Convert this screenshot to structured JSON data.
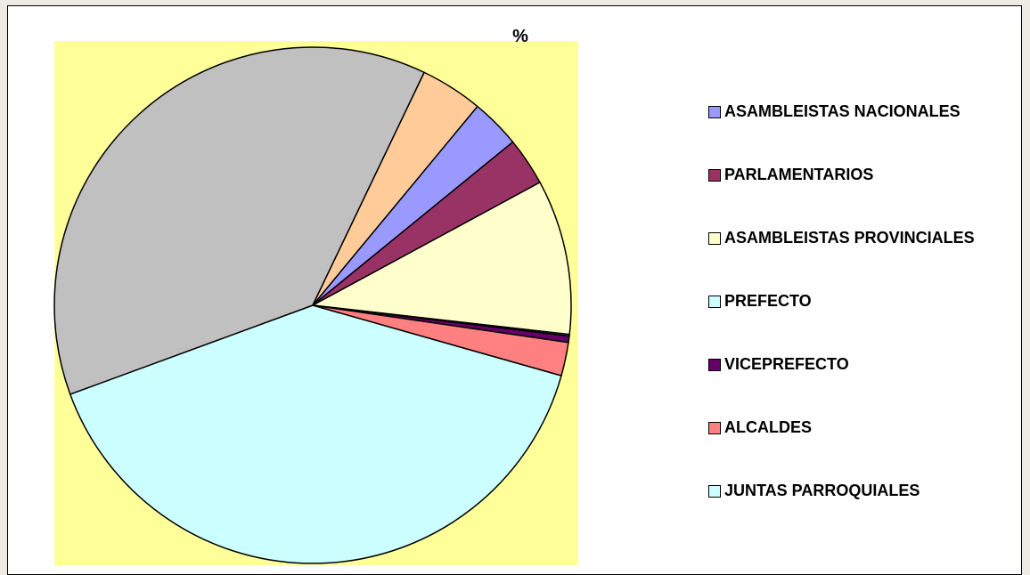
{
  "chart_data": {
    "type": "pie",
    "title": "%",
    "categories": [
      "ASAMBLEISTAS NACIONALES",
      "PARLAMENTARIOS",
      "ASAMBLEISTAS PROVINCIALES",
      "PREFECTO",
      "VICEPREFECTO",
      "ALCALDES",
      "JUNTAS PARROQUIALES",
      null,
      null
    ],
    "values": [
      3.1,
      3.0,
      9.7,
      0.1,
      0.4,
      2.1,
      40.0,
      37.7,
      3.9
    ],
    "colors": [
      "#9999ff",
      "#993366",
      "#ffffcc",
      "#ccffff",
      "#660066",
      "#ff8080",
      "#ccffff",
      "#c0c0c0",
      "#ffcc99"
    ],
    "legend": "right"
  }
}
